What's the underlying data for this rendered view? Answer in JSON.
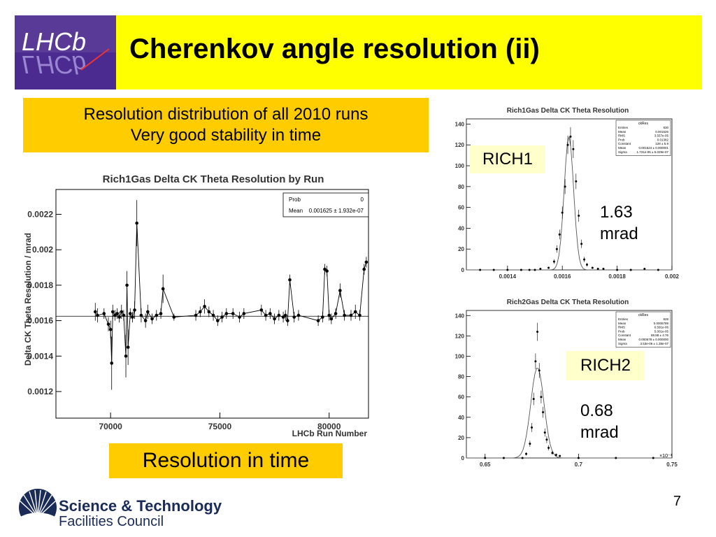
{
  "slide": {
    "title": "Cherenkov angle resolution (ii)",
    "intro_lines": [
      "Resolution distribution of all 2010 runs",
      "Very good stability in time"
    ],
    "bottom_label": "Resolution in time",
    "page_number": "7",
    "logo_text": "LHCb",
    "footer_org": {
      "line1": "Science & Technology",
      "line2": "Facilities Council"
    }
  },
  "colors": {
    "title_bar": "#ffff00",
    "box": "#ffcc00",
    "logo_bg": "#4b2b8f",
    "org": "#1a2b57"
  },
  "chart_data": [
    {
      "type": "scatter",
      "title": "Rich1Gas Delta CK Theta Resolution by Run",
      "xlabel": "LHCb Run Number",
      "ylabel": "Delta CK Theta Resolution / mrad",
      "xlim": [
        67500,
        81800
      ],
      "ylim": [
        0.00105,
        0.00234
      ],
      "xticks": [
        70000,
        75000,
        80000
      ],
      "yticks": [
        0.0012,
        0.0014,
        0.0016,
        0.0018,
        0.002,
        0.0022
      ],
      "ytick_labels": [
        "0.0012",
        "0.0014",
        "0.0016",
        "0.0018",
        "0.002",
        "0.0022"
      ],
      "stats": {
        "Prob": "0",
        "Mean": "0.001625 ± 1.932e-07"
      },
      "fit_value": 0.001625,
      "points": [
        {
          "x": 69300,
          "y": 0.00165,
          "e": 5e-05
        },
        {
          "x": 69400,
          "y": 0.00163,
          "e": 4e-05
        },
        {
          "x": 69700,
          "y": 0.00164,
          "e": 3e-05
        },
        {
          "x": 69900,
          "y": 0.00158,
          "e": 4e-05
        },
        {
          "x": 70000,
          "y": 0.00155,
          "e": 5e-05
        },
        {
          "x": 70050,
          "y": 0.00136,
          "e": 0.00015
        },
        {
          "x": 70100,
          "y": 0.00165,
          "e": 4e-05
        },
        {
          "x": 70200,
          "y": 0.00163,
          "e": 3e-05
        },
        {
          "x": 70300,
          "y": 0.00164,
          "e": 3e-05
        },
        {
          "x": 70400,
          "y": 0.00162,
          "e": 3e-05
        },
        {
          "x": 70500,
          "y": 0.00165,
          "e": 4e-05
        },
        {
          "x": 70600,
          "y": 0.00163,
          "e": 3e-05
        },
        {
          "x": 70700,
          "y": 0.0014,
          "e": 0.00012
        },
        {
          "x": 70750,
          "y": 0.0018,
          "e": 8e-05
        },
        {
          "x": 70800,
          "y": 0.00145,
          "e": 0.0001
        },
        {
          "x": 70900,
          "y": 0.00164,
          "e": 3e-05
        },
        {
          "x": 71000,
          "y": 0.00162,
          "e": 3e-05
        },
        {
          "x": 71100,
          "y": 0.00166,
          "e": 5e-05
        },
        {
          "x": 71200,
          "y": 0.00215,
          "e": 0.00013
        },
        {
          "x": 71400,
          "y": 0.00163,
          "e": 4e-05
        },
        {
          "x": 71600,
          "y": 0.0016,
          "e": 4e-05
        },
        {
          "x": 71700,
          "y": 0.00165,
          "e": 4e-05
        },
        {
          "x": 71900,
          "y": 0.00161,
          "e": 3e-05
        },
        {
          "x": 72100,
          "y": 0.00163,
          "e": 3e-05
        },
        {
          "x": 72300,
          "y": 0.00164,
          "e": 3e-05
        },
        {
          "x": 72400,
          "y": 0.00178,
          "e": 8e-05
        },
        {
          "x": 72900,
          "y": 0.00162,
          "e": 2e-05
        },
        {
          "x": 73900,
          "y": 0.00163,
          "e": 3e-05
        },
        {
          "x": 74100,
          "y": 0.00165,
          "e": 3e-05
        },
        {
          "x": 74300,
          "y": 0.00168,
          "e": 4e-05
        },
        {
          "x": 74500,
          "y": 0.00165,
          "e": 3e-05
        },
        {
          "x": 74700,
          "y": 0.00163,
          "e": 3e-05
        },
        {
          "x": 74900,
          "y": 0.0016,
          "e": 3e-05
        },
        {
          "x": 75100,
          "y": 0.00162,
          "e": 3e-05
        },
        {
          "x": 75300,
          "y": 0.00164,
          "e": 3e-05
        },
        {
          "x": 75600,
          "y": 0.00164,
          "e": 3e-05
        },
        {
          "x": 75900,
          "y": 0.00162,
          "e": 3e-05
        },
        {
          "x": 76100,
          "y": 0.00164,
          "e": 3e-05
        },
        {
          "x": 76900,
          "y": 0.00166,
          "e": 3e-05
        },
        {
          "x": 77100,
          "y": 0.00163,
          "e": 3e-05
        },
        {
          "x": 77300,
          "y": 0.00164,
          "e": 3e-05
        },
        {
          "x": 77500,
          "y": 0.00161,
          "e": 3e-05
        },
        {
          "x": 77700,
          "y": 0.00163,
          "e": 3e-05
        },
        {
          "x": 77900,
          "y": 0.00162,
          "e": 3e-05
        },
        {
          "x": 78000,
          "y": 0.00163,
          "e": 3e-05
        },
        {
          "x": 78100,
          "y": 0.0016,
          "e": 3e-05
        },
        {
          "x": 78200,
          "y": 0.00183,
          "e": 3e-05
        },
        {
          "x": 78400,
          "y": 0.00162,
          "e": 3e-05
        },
        {
          "x": 78600,
          "y": 0.00163,
          "e": 3e-05
        },
        {
          "x": 79500,
          "y": 0.0016,
          "e": 3e-05
        },
        {
          "x": 79700,
          "y": 0.00162,
          "e": 3e-05
        },
        {
          "x": 79800,
          "y": 0.00189,
          "e": 3e-05
        },
        {
          "x": 79900,
          "y": 0.00188,
          "e": 3e-05
        },
        {
          "x": 80000,
          "y": 0.00163,
          "e": 3e-05
        },
        {
          "x": 80100,
          "y": 0.00161,
          "e": 3e-05
        },
        {
          "x": 80300,
          "y": 0.00164,
          "e": 3e-05
        },
        {
          "x": 80500,
          "y": 0.00177,
          "e": 4e-05
        },
        {
          "x": 80700,
          "y": 0.00163,
          "e": 3e-05
        },
        {
          "x": 81000,
          "y": 0.00163,
          "e": 3e-05
        },
        {
          "x": 81200,
          "y": 0.00165,
          "e": 4e-05
        },
        {
          "x": 81400,
          "y": 0.00163,
          "e": 3e-05
        },
        {
          "x": 81600,
          "y": 0.00189,
          "e": 3e-05
        },
        {
          "x": 81700,
          "y": 0.00193,
          "e": 3e-05
        }
      ]
    },
    {
      "type": "histogram",
      "title": "Rich1Gas Delta CK Theta Resolution",
      "label": "RICH1",
      "result": "1.63 mrad",
      "xlim": [
        0.00125,
        0.002
      ],
      "ylim": [
        0,
        145
      ],
      "xticks": [
        0.0014,
        0.0016,
        0.0018,
        0.002
      ],
      "xtick_labels": [
        "0.0014",
        "0.0016",
        "0.0018",
        "0.002"
      ],
      "yticks": [
        0,
        20,
        40,
        60,
        80,
        100,
        120,
        140
      ],
      "stats_title": "ckRes",
      "stats": [
        [
          "Entries",
          "830"
        ],
        [
          "Mean",
          "0.001626"
        ],
        [
          "RMS",
          "3.557e-05"
        ],
        [
          "Prob",
          "0.01382"
        ],
        [
          "Constant",
          "128 ± 5.9"
        ],
        [
          "Mean",
          "0.001624 ± 0.000001"
        ],
        [
          "Sigma",
          "1.731e-05 ± 5.029e-07"
        ]
      ],
      "fit": {
        "constant": 128,
        "mean": 0.001624,
        "sigma": 1.731e-05
      },
      "points": [
        [
          0.0013,
          0
        ],
        [
          0.00135,
          0
        ],
        [
          0.0014,
          0
        ],
        [
          0.00145,
          0
        ],
        [
          0.00148,
          0
        ],
        [
          0.0015,
          0
        ],
        [
          0.00152,
          1
        ],
        [
          0.00155,
          2
        ],
        [
          0.00157,
          8
        ],
        [
          0.00158,
          20
        ],
        [
          0.00159,
          34
        ],
        [
          0.0016,
          55
        ],
        [
          0.00161,
          80
        ],
        [
          0.00162,
          120
        ],
        [
          0.00163,
          128
        ],
        [
          0.00164,
          116
        ],
        [
          0.00165,
          85
        ],
        [
          0.00166,
          52
        ],
        [
          0.00167,
          25
        ],
        [
          0.00168,
          10
        ],
        [
          0.00169,
          5
        ],
        [
          0.00171,
          2
        ],
        [
          0.00173,
          1
        ],
        [
          0.00175,
          1
        ],
        [
          0.0018,
          0
        ],
        [
          0.00185,
          0
        ],
        [
          0.0019,
          1
        ],
        [
          0.00195,
          0
        ]
      ]
    },
    {
      "type": "histogram",
      "title": "Rich2Gas Delta CK Theta Resolution",
      "label": "RICH2",
      "result": "0.68 mrad",
      "multiplier": "×10⁻³",
      "xlim": [
        0.00064,
        0.00075
      ],
      "ylim": [
        0,
        145
      ],
      "xticks": [
        0.00065,
        0.0007,
        0.00075
      ],
      "xtick_labels": [
        "0.65",
        "0.7",
        "0.75"
      ],
      "yticks": [
        0,
        20,
        40,
        60,
        80,
        100,
        120,
        140
      ],
      "stats_title": "ckRes",
      "stats": [
        [
          "Entries",
          "828"
        ],
        [
          "Mean",
          "0.0006789"
        ],
        [
          "RMS",
          "6.591e-06"
        ],
        [
          "Prob",
          "5.001e-05"
        ],
        [
          "Constant",
          "88.88 ± 4.76"
        ],
        [
          "Mean",
          "0.000678 ± 0.000000"
        ],
        [
          "Sigma",
          "3.53e-06 ± 1.38e-07"
        ]
      ],
      "fit": {
        "constant": 88.88,
        "mean": 0.000678,
        "sigma": 3.53e-06
      },
      "points": [
        [
          0.00065,
          0
        ],
        [
          0.00066,
          0
        ],
        [
          0.00067,
          0
        ],
        [
          0.000672,
          4
        ],
        [
          0.000674,
          14
        ],
        [
          0.000675,
          30
        ],
        [
          0.000676,
          58
        ],
        [
          0.000677,
          95
        ],
        [
          0.000678,
          124
        ],
        [
          0.000679,
          86
        ],
        [
          0.00068,
          60
        ],
        [
          0.000681,
          45
        ],
        [
          0.000682,
          25
        ],
        [
          0.000683,
          18
        ],
        [
          0.000684,
          10
        ],
        [
          0.000686,
          5
        ],
        [
          0.000688,
          3
        ],
        [
          0.00069,
          2
        ],
        [
          0.0007,
          0
        ],
        [
          0.00072,
          0
        ],
        [
          0.00074,
          0
        ]
      ]
    }
  ]
}
